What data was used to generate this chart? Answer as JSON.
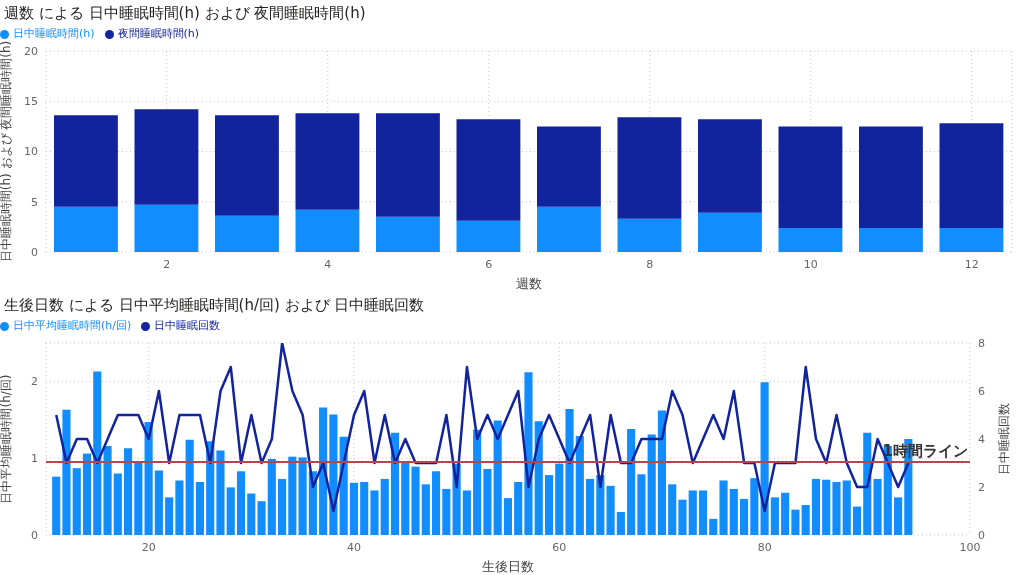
{
  "chart_data": [
    {
      "type": "bar",
      "title": "週数 による 日中睡眠時間(h) および 夜間睡眠時間(h)",
      "xlabel": "週数",
      "ylabel": "日中睡眠時間(h) および 夜間睡眠時間(h)",
      "x": [
        1,
        2,
        3,
        4,
        5,
        6,
        7,
        8,
        9,
        10,
        11,
        12
      ],
      "stacked": true,
      "series": [
        {
          "name": "日中睡眠時間(h)",
          "color": "#118dff",
          "values": [
            4.5,
            4.7,
            3.6,
            4.2,
            3.5,
            3.1,
            4.5,
            3.3,
            3.9,
            2.4,
            2.4,
            2.4
          ]
        },
        {
          "name": "夜間睡眠時間(h)",
          "color": "#12239e",
          "values": [
            9.1,
            9.5,
            10.0,
            9.6,
            10.3,
            10.1,
            8.0,
            10.1,
            9.3,
            10.1,
            10.1,
            10.4
          ]
        }
      ],
      "xlim": [
        0.5,
        12.5
      ],
      "xticks": [
        2,
        4,
        6,
        8,
        10,
        12
      ],
      "ylim": [
        0,
        20
      ],
      "yticks": [
        0,
        5,
        10,
        15,
        20
      ],
      "grid": true,
      "legend": "top left"
    },
    {
      "type": "bar",
      "title": "生後日数 による 日中平均睡眠時間(h/回) および 日中睡眠回数",
      "xlabel": "生後日数",
      "ylabel": "日中平均睡眠時間(h/回)",
      "y2label": "日中睡眠回数",
      "x": [
        11,
        12,
        13,
        14,
        15,
        16,
        17,
        18,
        19,
        20,
        21,
        22,
        23,
        24,
        25,
        26,
        27,
        28,
        29,
        30,
        31,
        32,
        33,
        34,
        35,
        36,
        37,
        38,
        39,
        40,
        41,
        42,
        43,
        44,
        45,
        46,
        47,
        48,
        49,
        50,
        51,
        52,
        53,
        54,
        55,
        56,
        57,
        58,
        59,
        60,
        61,
        62,
        63,
        64,
        65,
        66,
        67,
        68,
        69,
        70,
        71,
        72,
        73,
        74,
        75,
        76,
        77,
        78,
        79,
        80,
        81,
        82,
        83,
        84,
        85,
        86,
        87,
        88,
        89,
        90,
        91,
        92,
        93,
        94
      ],
      "series": [
        {
          "name": "日中平均睡眠時間(h/回)",
          "color": "#118dff",
          "values": [
            0.76,
            1.63,
            0.87,
            1.06,
            2.13,
            1.16,
            0.8,
            1.13,
            0.96,
            1.47,
            0.84,
            0.49,
            0.71,
            1.24,
            0.69,
            1.22,
            1.1,
            0.62,
            0.83,
            0.54,
            0.44,
            0.99,
            0.73,
            1.02,
            1.01,
            0.83,
            1.66,
            1.57,
            1.28,
            0.68,
            0.69,
            0.58,
            0.73,
            1.33,
            0.94,
            0.89,
            0.66,
            0.83,
            0.6,
            0.93,
            0.58,
            1.37,
            0.86,
            1.49,
            0.48,
            0.69,
            2.12,
            1.48,
            0.78,
            0.93,
            1.64,
            1.29,
            0.73,
            0.78,
            0.64,
            0.3,
            1.38,
            0.79,
            1.31,
            1.62,
            0.66,
            0.46,
            0.58,
            0.58,
            0.21,
            0.71,
            0.6,
            0.47,
            0.74,
            1.99,
            0.49,
            0.55,
            0.33,
            0.39,
            0.73,
            0.72,
            0.69,
            0.71,
            0.37,
            1.33,
            0.73,
            1.16,
            0.49,
            1.25
          ]
        },
        {
          "name": "日中睡眠回数",
          "type": "line",
          "axis": "y2",
          "color": "#12239e",
          "values": [
            5,
            3,
            4,
            4,
            3,
            4,
            5,
            5,
            5,
            4,
            6,
            3,
            5,
            5,
            5,
            3,
            6,
            7,
            3,
            5,
            3,
            4,
            8,
            6,
            5,
            2,
            3,
            1,
            3,
            5,
            6,
            3,
            5,
            3,
            4,
            3,
            3,
            3,
            5,
            2,
            7,
            4,
            5,
            4,
            5,
            6,
            2,
            4,
            5,
            4,
            3,
            4,
            5,
            2,
            5,
            3,
            3,
            4,
            4,
            4,
            6,
            5,
            3,
            4,
            5,
            4,
            6,
            3,
            3,
            1,
            3,
            3,
            3,
            7,
            4,
            3,
            5,
            3,
            2,
            2,
            4,
            3,
            2,
            3
          ]
        }
      ],
      "xlim": [
        10,
        100
      ],
      "xticks": [
        20,
        40,
        60,
        80,
        100
      ],
      "ylim": [
        0,
        2.5
      ],
      "yticks": [
        0,
        1,
        2
      ],
      "y2lim": [
        0,
        8
      ],
      "y2ticks": [
        0,
        2,
        4,
        6,
        8
      ],
      "grid": true,
      "legend": "top left",
      "marker": "none",
      "ref_lines": [
        {
          "axis": "y",
          "value": 0.95,
          "label": "1時間ライン",
          "color": "#b5454f"
        }
      ]
    }
  ]
}
